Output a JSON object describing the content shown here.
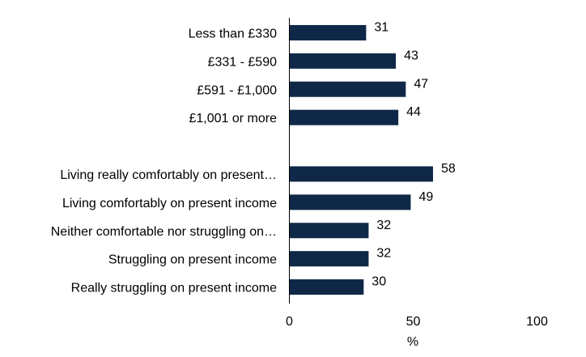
{
  "chart_data": {
    "type": "bar",
    "orientation": "horizontal",
    "categories": [
      "Less than £330",
      "£331 - £590",
      "£591 - £1,000",
      "£1,001 or more",
      "",
      "Living really comfortably on present…",
      "Living comfortably on present income",
      "Neither comfortable nor struggling on…",
      "Struggling on present income",
      "Really struggling on present income"
    ],
    "values": [
      31,
      43,
      47,
      44,
      null,
      58,
      49,
      32,
      32,
      30
    ],
    "value_labels": [
      "31",
      "43",
      "47",
      "44",
      "",
      "58",
      "49",
      "32",
      "32",
      "30"
    ],
    "xlabel": "%",
    "xlim": [
      0,
      100
    ],
    "xticks": [
      "0",
      "50",
      "100"
    ],
    "bar_color": "#0f2847",
    "grid": false,
    "legend": "none"
  }
}
